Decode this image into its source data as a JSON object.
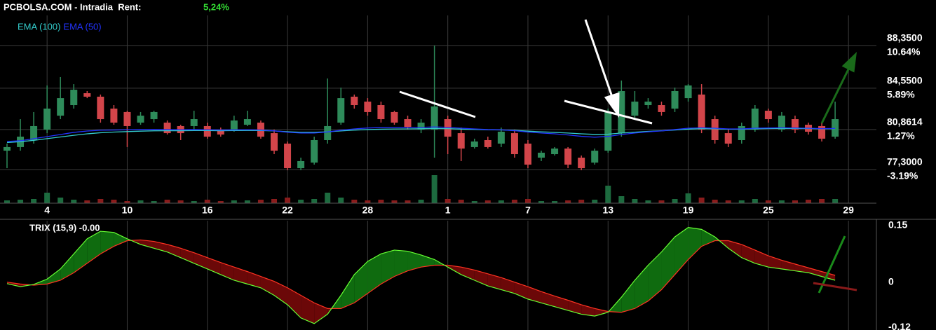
{
  "chart_data": [
    {
      "type": "candlestick",
      "title": "PCBOLSA.COM - Intradia  Rent:",
      "subtitle": "5,24%",
      "xlim": [
        -0.525,
        65.09
      ],
      "xticks": [
        {
          "value": 3,
          "label": "4"
        },
        {
          "value": 9,
          "label": "10"
        },
        {
          "value": 15,
          "label": "16"
        },
        {
          "value": 21,
          "label": "22"
        },
        {
          "value": 27,
          "label": "28"
        },
        {
          "value": 33,
          "label": "1"
        },
        {
          "value": 39,
          "label": "7"
        },
        {
          "value": 45,
          "label": "13"
        },
        {
          "value": 51,
          "label": "19"
        },
        {
          "value": 57,
          "label": "25"
        },
        {
          "value": 63,
          "label": "29"
        }
      ],
      "ylim": [
        76.05,
        91.03
      ],
      "yticks": [
        {
          "value": 88.35,
          "label": "88,3500"
        },
        {
          "value": 84.55,
          "label": "84,5500"
        },
        {
          "value": 80.8614,
          "label": "80,8614"
        },
        {
          "value": 77.3,
          "label": "77,3000"
        }
      ],
      "y2lim": [
        -4.76,
        14.0
      ],
      "y2ticks": [
        {
          "value": 10.64,
          "label": "10.64%"
        },
        {
          "value": 5.89,
          "label": "5.89%"
        },
        {
          "value": 1.27,
          "label": "1.27%"
        },
        {
          "value": -3.19,
          "label": "-3.19%"
        }
      ],
      "y2_up_color": "#33ee33",
      "y2_down_color": "#ff3333",
      "grid": true,
      "up_color": "#2e8b5a",
      "down_color": "#d2454a",
      "volume_up_color": "#1d6b3f",
      "volume_down_color": "#8a1c1c",
      "open": [
        78.98,
        79.3,
        79.92,
        80.86,
        82.1,
        83.04,
        84.1,
        83.79,
        82.73,
        82.42,
        81.48,
        81.79,
        81.48,
        81.17,
        81.17,
        81.17,
        80.86,
        80.86,
        81.29,
        81.48,
        80.54,
        79.61,
        77.42,
        77.92,
        79.92,
        81.48,
        83.79,
        83.35,
        83.04,
        82.42,
        81.79,
        80.86,
        80.86,
        81.79,
        80.54,
        79.3,
        79.92,
        79.61,
        80.54,
        79.61,
        78.36,
        78.67,
        79.17,
        78.36,
        77.92,
        78.98,
        80.54,
        82.1,
        83.04,
        83.04,
        82.73,
        83.66,
        83.98,
        81.79,
        80.54,
        79.92,
        80.86,
        82.54,
        80.86,
        81.79,
        81.29,
        81.17,
        80.23
      ],
      "high": [
        79.61,
        81.79,
        82.42,
        84.79,
        85.54,
        84.91,
        84.29,
        83.98,
        83.04,
        82.54,
        82.42,
        82.54,
        81.67,
        81.29,
        82.54,
        81.48,
        81.04,
        82.1,
        82.54,
        81.67,
        80.86,
        79.8,
        78.36,
        80.23,
        85.41,
        84.6,
        83.98,
        83.66,
        83.35,
        82.54,
        82.1,
        81.79,
        88.34,
        82.1,
        81.04,
        80.05,
        80.23,
        81.04,
        80.86,
        79.92,
        78.98,
        79.3,
        79.3,
        78.55,
        79.17,
        82.73,
        85.23,
        84.29,
        83.66,
        83.35,
        84.6,
        84.91,
        84.91,
        82.1,
        80.86,
        81.48,
        83.04,
        82.73,
        82.42,
        82.1,
        81.48,
        81.48,
        83.35
      ],
      "low": [
        77.42,
        78.98,
        79.61,
        80.54,
        81.79,
        82.73,
        83.66,
        81.48,
        81.29,
        79.3,
        81.29,
        81.48,
        80.42,
        79.92,
        80.86,
        80.05,
        80.23,
        80.67,
        81.17,
        80.05,
        78.67,
        77.24,
        77.24,
        77.74,
        79.61,
        81.29,
        82.73,
        82.1,
        81.48,
        81.29,
        80.86,
        80.54,
        78.36,
        78.67,
        78.05,
        79.17,
        79.17,
        79.3,
        78.36,
        77.42,
        78.05,
        78.55,
        77.42,
        77.24,
        77.74,
        78.8,
        80.23,
        81.79,
        82.73,
        82.1,
        82.42,
        83.35,
        80.54,
        79.61,
        79.3,
        79.61,
        80.67,
        81.48,
        80.67,
        80.54,
        80.42,
        79.8,
        80.05
      ],
      "close": [
        79.3,
        80.23,
        81.17,
        82.73,
        83.66,
        84.41,
        83.79,
        81.79,
        81.48,
        81.17,
        82.1,
        82.42,
        80.54,
        80.54,
        81.79,
        80.23,
        80.42,
        81.67,
        81.79,
        80.23,
        78.98,
        77.42,
        78.05,
        79.92,
        81.17,
        83.66,
        83.04,
        82.42,
        81.79,
        81.48,
        81.04,
        81.48,
        82.92,
        80.23,
        79.17,
        79.8,
        79.3,
        80.67,
        78.67,
        77.74,
        78.8,
        79.17,
        77.74,
        77.42,
        78.98,
        82.42,
        84.29,
        83.35,
        83.35,
        82.42,
        84.29,
        84.79,
        80.86,
        79.92,
        79.61,
        81.17,
        82.73,
        81.79,
        82.1,
        80.86,
        80.67,
        80.05,
        81.79
      ],
      "volume": [
        4,
        5,
        6,
        15,
        8,
        5,
        4,
        6,
        5,
        3,
        4,
        3,
        5,
        4,
        3,
        5,
        3,
        4,
        4,
        5,
        6,
        8,
        5,
        6,
        15,
        8,
        5,
        4,
        5,
        4,
        4,
        5,
        40,
        6,
        5,
        3,
        4,
        4,
        5,
        6,
        3,
        3,
        4,
        5,
        5,
        25,
        10,
        6,
        4,
        4,
        6,
        14,
        8,
        5,
        4,
        4,
        6,
        4,
        4,
        4,
        5,
        6,
        6
      ],
      "series": [
        {
          "name": "EMA (100)",
          "color": "#33cccc",
          "values": [
            79.7,
            79.78,
            79.9,
            80.05,
            80.2,
            80.35,
            80.48,
            80.58,
            80.64,
            80.68,
            80.72,
            80.75,
            80.76,
            80.76,
            80.77,
            80.77,
            80.76,
            80.77,
            80.78,
            80.77,
            80.74,
            80.67,
            80.62,
            80.62,
            80.66,
            80.74,
            80.81,
            80.86,
            80.89,
            80.91,
            80.92,
            80.93,
            80.96,
            80.94,
            80.9,
            80.87,
            80.84,
            80.83,
            80.79,
            80.72,
            80.66,
            80.61,
            80.55,
            80.48,
            80.43,
            80.45,
            80.55,
            80.63,
            80.7,
            80.75,
            80.82,
            80.9,
            80.94,
            80.93,
            80.9,
            80.9,
            80.93,
            80.95,
            80.97,
            80.96,
            80.95,
            80.93,
            80.94
          ]
        },
        {
          "name": "EMA (50)",
          "color": "#2233ff",
          "values": [
            79.8,
            79.86,
            80.05,
            80.23,
            80.42,
            80.61,
            80.73,
            80.8,
            80.82,
            80.84,
            80.86,
            80.88,
            80.86,
            80.85,
            80.86,
            80.84,
            80.82,
            80.83,
            80.84,
            80.82,
            80.75,
            80.62,
            80.55,
            80.55,
            80.65,
            80.8,
            80.92,
            81.0,
            81.04,
            81.06,
            81.06,
            81.06,
            81.1,
            81.06,
            80.98,
            80.92,
            80.86,
            80.84,
            80.76,
            80.64,
            80.55,
            80.48,
            80.38,
            80.26,
            80.18,
            80.25,
            80.42,
            80.55,
            80.66,
            80.74,
            80.86,
            80.98,
            81.02,
            80.98,
            80.92,
            80.92,
            80.98,
            81.0,
            81.02,
            81.0,
            80.98,
            80.94,
            80.96
          ]
        }
      ]
    },
    {
      "type": "line",
      "title": "TRIX (15,9) -0.00",
      "ylim": [
        -0.127,
        0.163
      ],
      "yticks": [
        0.15,
        0,
        -0.12
      ],
      "series": [
        {
          "color": "#66ff33",
          "fill": "#0f6b0f",
          "values": [
            -0.004,
            -0.012,
            -0.006,
            0.008,
            0.035,
            0.075,
            0.115,
            0.135,
            0.132,
            0.115,
            0.1,
            0.09,
            0.08,
            0.065,
            0.05,
            0.035,
            0.02,
            0.005,
            -0.005,
            -0.015,
            -0.035,
            -0.06,
            -0.095,
            -0.11,
            -0.085,
            -0.035,
            0.02,
            0.055,
            0.075,
            0.085,
            0.082,
            0.072,
            0.06,
            0.04,
            0.02,
            0.005,
            -0.01,
            -0.02,
            -0.03,
            -0.045,
            -0.055,
            -0.065,
            -0.075,
            -0.085,
            -0.09,
            -0.08,
            -0.04,
            0.005,
            0.045,
            0.08,
            0.12,
            0.145,
            0.14,
            0.12,
            0.09,
            0.065,
            0.05,
            0.04,
            0.035,
            0.03,
            0.025,
            0.015,
            0.005
          ]
        },
        {
          "color": "#ff3322",
          "fill": "#6b0808",
          "values": [
            0.0,
            -0.005,
            -0.008,
            -0.005,
            0.005,
            0.025,
            0.05,
            0.075,
            0.095,
            0.11,
            0.112,
            0.108,
            0.1,
            0.09,
            0.078,
            0.065,
            0.052,
            0.04,
            0.028,
            0.015,
            0.002,
            -0.015,
            -0.035,
            -0.055,
            -0.07,
            -0.07,
            -0.055,
            -0.03,
            -0.005,
            0.015,
            0.03,
            0.04,
            0.045,
            0.045,
            0.04,
            0.032,
            0.022,
            0.012,
            0.0,
            -0.012,
            -0.025,
            -0.037,
            -0.048,
            -0.06,
            -0.07,
            -0.078,
            -0.08,
            -0.07,
            -0.05,
            -0.02,
            0.02,
            0.06,
            0.095,
            0.11,
            0.11,
            0.1,
            0.085,
            0.07,
            0.058,
            0.048,
            0.038,
            0.028,
            0.018
          ]
        }
      ]
    }
  ]
}
